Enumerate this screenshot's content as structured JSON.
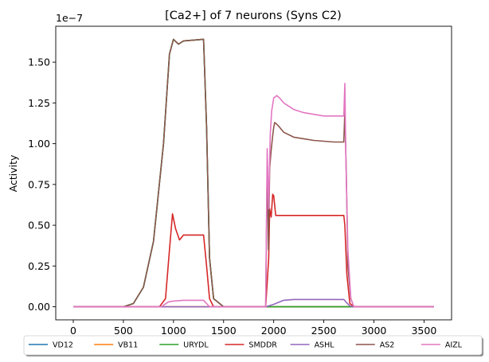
{
  "chart_data": {
    "type": "line",
    "title": "[Ca2+] of 7 neurons (Syns C2)",
    "xlabel": "",
    "ylabel": "Activity",
    "y_offset_text": "1e−7",
    "xlim": [
      -175,
      3775
    ],
    "ylim": [
      -0.08,
      1.72
    ],
    "x_ticks": [
      0,
      500,
      1000,
      1500,
      2000,
      2500,
      3000,
      3500
    ],
    "y_ticks": [
      0.0,
      0.25,
      0.5,
      0.75,
      1.0,
      1.25,
      1.5
    ],
    "x_tick_labels": [
      "0",
      "500",
      "1000",
      "1500",
      "2000",
      "2500",
      "3000",
      "3500"
    ],
    "y_tick_labels": [
      "0.00",
      "0.25",
      "0.50",
      "0.75",
      "1.00",
      "1.25",
      "1.50"
    ],
    "grid": false,
    "legend_position": "below plot, single row",
    "series": [
      {
        "name": "VD12",
        "color": "#1f77b4",
        "x": [
          0,
          500,
          600,
          700,
          800,
          900,
          960,
          1000,
          1050,
          1100,
          1200,
          1300,
          1330,
          1360,
          1400,
          1500,
          1900,
          3600
        ],
        "y": [
          0,
          0,
          0.02,
          0.12,
          0.4,
          1.0,
          1.55,
          1.64,
          1.61,
          1.63,
          1.635,
          1.64,
          1.1,
          0.3,
          0.05,
          0,
          0,
          0
        ]
      },
      {
        "name": "VB11",
        "color": "#ff7f0e",
        "x": [
          0,
          3600
        ],
        "y": [
          0,
          0
        ]
      },
      {
        "name": "URYDL",
        "color": "#2ca02c",
        "x": [
          0,
          500,
          600,
          700,
          800,
          900,
          960,
          1000,
          1050,
          1100,
          1200,
          1300,
          1330,
          1360,
          1400,
          1500,
          1900,
          3600
        ],
        "y": [
          0,
          0,
          0.02,
          0.12,
          0.4,
          1.0,
          1.55,
          1.64,
          1.61,
          1.63,
          1.635,
          1.64,
          1.1,
          0.3,
          0.05,
          0,
          0,
          0
        ]
      },
      {
        "name": "SMDDR",
        "color": "#d62728",
        "x": [
          0,
          860,
          920,
          960,
          990,
          1020,
          1060,
          1100,
          1200,
          1300,
          1330,
          1360,
          1400,
          1500,
          1920,
          1950,
          1960,
          1975,
          1990,
          2000,
          2020,
          2040,
          2100,
          2500,
          2700,
          2710,
          2730,
          2760,
          2800,
          3600
        ],
        "y": [
          0,
          0,
          0.05,
          0.35,
          0.57,
          0.48,
          0.41,
          0.44,
          0.44,
          0.44,
          0.25,
          0.05,
          0,
          0,
          0,
          0.3,
          0.6,
          0.55,
          0.69,
          0.68,
          0.56,
          0.56,
          0.56,
          0.56,
          0.56,
          0.5,
          0.2,
          0.02,
          0,
          0
        ]
      },
      {
        "name": "ASHL",
        "color": "#9467bd",
        "x": [
          0,
          1920,
          2000,
          2100,
          2200,
          2500,
          2700,
          2720,
          2760,
          2800,
          3600
        ],
        "y": [
          0,
          0,
          0.015,
          0.04,
          0.045,
          0.045,
          0.045,
          0.03,
          0.005,
          0,
          0
        ]
      },
      {
        "name": "AS2",
        "color": "#8c564b",
        "x": [
          0,
          500,
          600,
          700,
          800,
          900,
          960,
          1000,
          1050,
          1100,
          1200,
          1300,
          1330,
          1360,
          1400,
          1500,
          1920,
          1935,
          1948,
          1960,
          1975,
          1990,
          2000,
          2010,
          2030,
          2060,
          2100,
          2200,
          2300,
          2400,
          2500,
          2600,
          2700,
          2710,
          2725,
          2740,
          2770,
          2800,
          3600
        ],
        "y": [
          0,
          0,
          0.02,
          0.12,
          0.4,
          1.0,
          1.55,
          1.64,
          1.61,
          1.63,
          1.635,
          1.64,
          1.1,
          0.3,
          0.05,
          0,
          0,
          0.87,
          0.35,
          0.85,
          0.96,
          1.05,
          1.1,
          1.13,
          1.12,
          1.1,
          1.07,
          1.04,
          1.03,
          1.02,
          1.015,
          1.01,
          1.01,
          1.2,
          0.8,
          0.25,
          0.05,
          0,
          0
        ]
      },
      {
        "name": "AIZL",
        "color": "#e377c2",
        "x": [
          0,
          880,
          900,
          950,
          1000,
          1100,
          1300,
          1330,
          1360,
          1400,
          1920,
          1935,
          1950,
          1965,
          1980,
          2000,
          2030,
          2060,
          2100,
          2200,
          2300,
          2400,
          2500,
          2600,
          2700,
          2710,
          2720,
          2740,
          2770,
          2800,
          3600
        ],
        "y": [
          0,
          0,
          0.01,
          0.03,
          0.035,
          0.04,
          0.04,
          0.02,
          0,
          0,
          0,
          0.97,
          0.6,
          1.05,
          1.2,
          1.28,
          1.295,
          1.28,
          1.25,
          1.21,
          1.19,
          1.18,
          1.17,
          1.17,
          1.17,
          1.37,
          0.9,
          0.35,
          0.05,
          0,
          0
        ]
      }
    ]
  }
}
